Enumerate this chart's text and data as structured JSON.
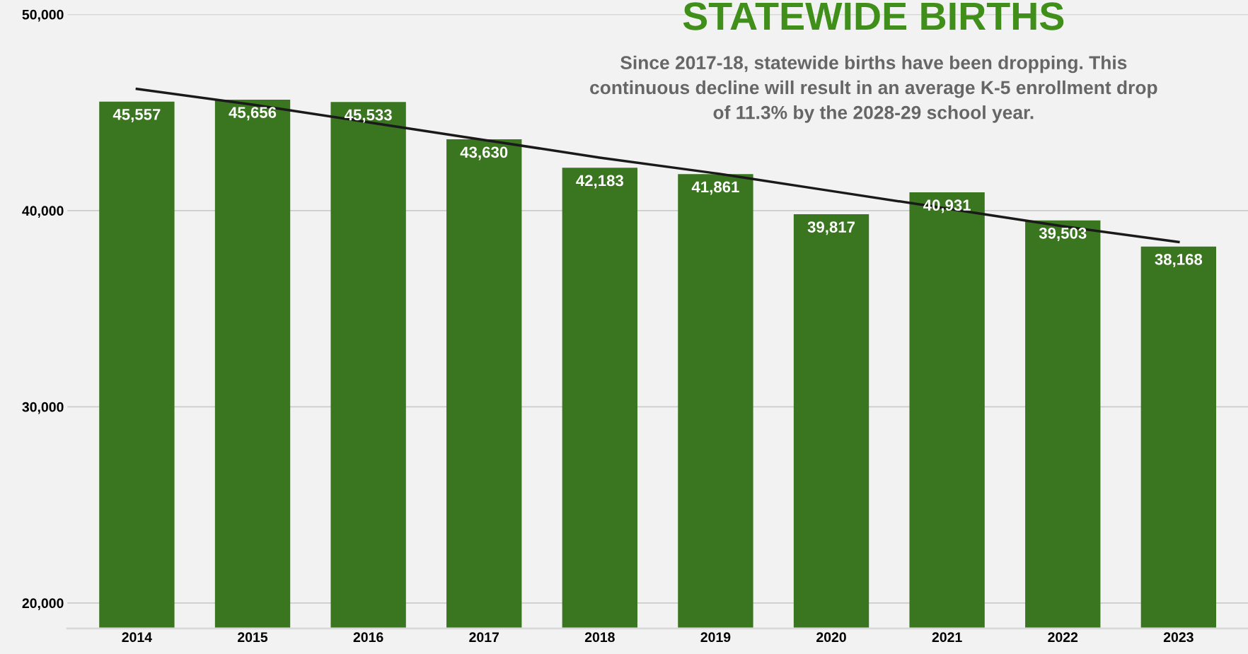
{
  "chart_data": {
    "type": "bar",
    "title": "STATEWIDE BIRTHS",
    "subtitle": "Since 2017-18, statewide births have been dropping. This\ncontinuous decline will result in an average K-5 enrollment drop\nof 11.3% by the 2028-29 school year.",
    "categories": [
      "2014",
      "2015",
      "2016",
      "2017",
      "2018",
      "2019",
      "2020",
      "2021",
      "2022",
      "2023"
    ],
    "series": [
      {
        "color": "#3a7520",
        "values": [
          45557,
          45656,
          45533,
          43630,
          42183,
          41861,
          39817,
          40931,
          39503,
          38168
        ],
        "value_labels": [
          "45,557",
          "45,656",
          "45,533",
          "43,630",
          "42,183",
          "41,861",
          "39,817",
          "40,931",
          "39,503",
          "38,168"
        ]
      },
      {
        "type": "line",
        "color": "#1a1a1a",
        "values": [
          46200,
          45400,
          44500,
          43600,
          42700,
          41900,
          41000,
          40100,
          39200,
          38400
        ]
      }
    ],
    "ylim": [
      18700,
      50000
    ],
    "yticks": [
      {
        "value": 20000,
        "label": "20,000"
      },
      {
        "value": 30000,
        "label": "30,000"
      },
      {
        "value": 40000,
        "label": "40,000"
      },
      {
        "value": 50000,
        "label": "50,000"
      }
    ],
    "grid": "y"
  }
}
